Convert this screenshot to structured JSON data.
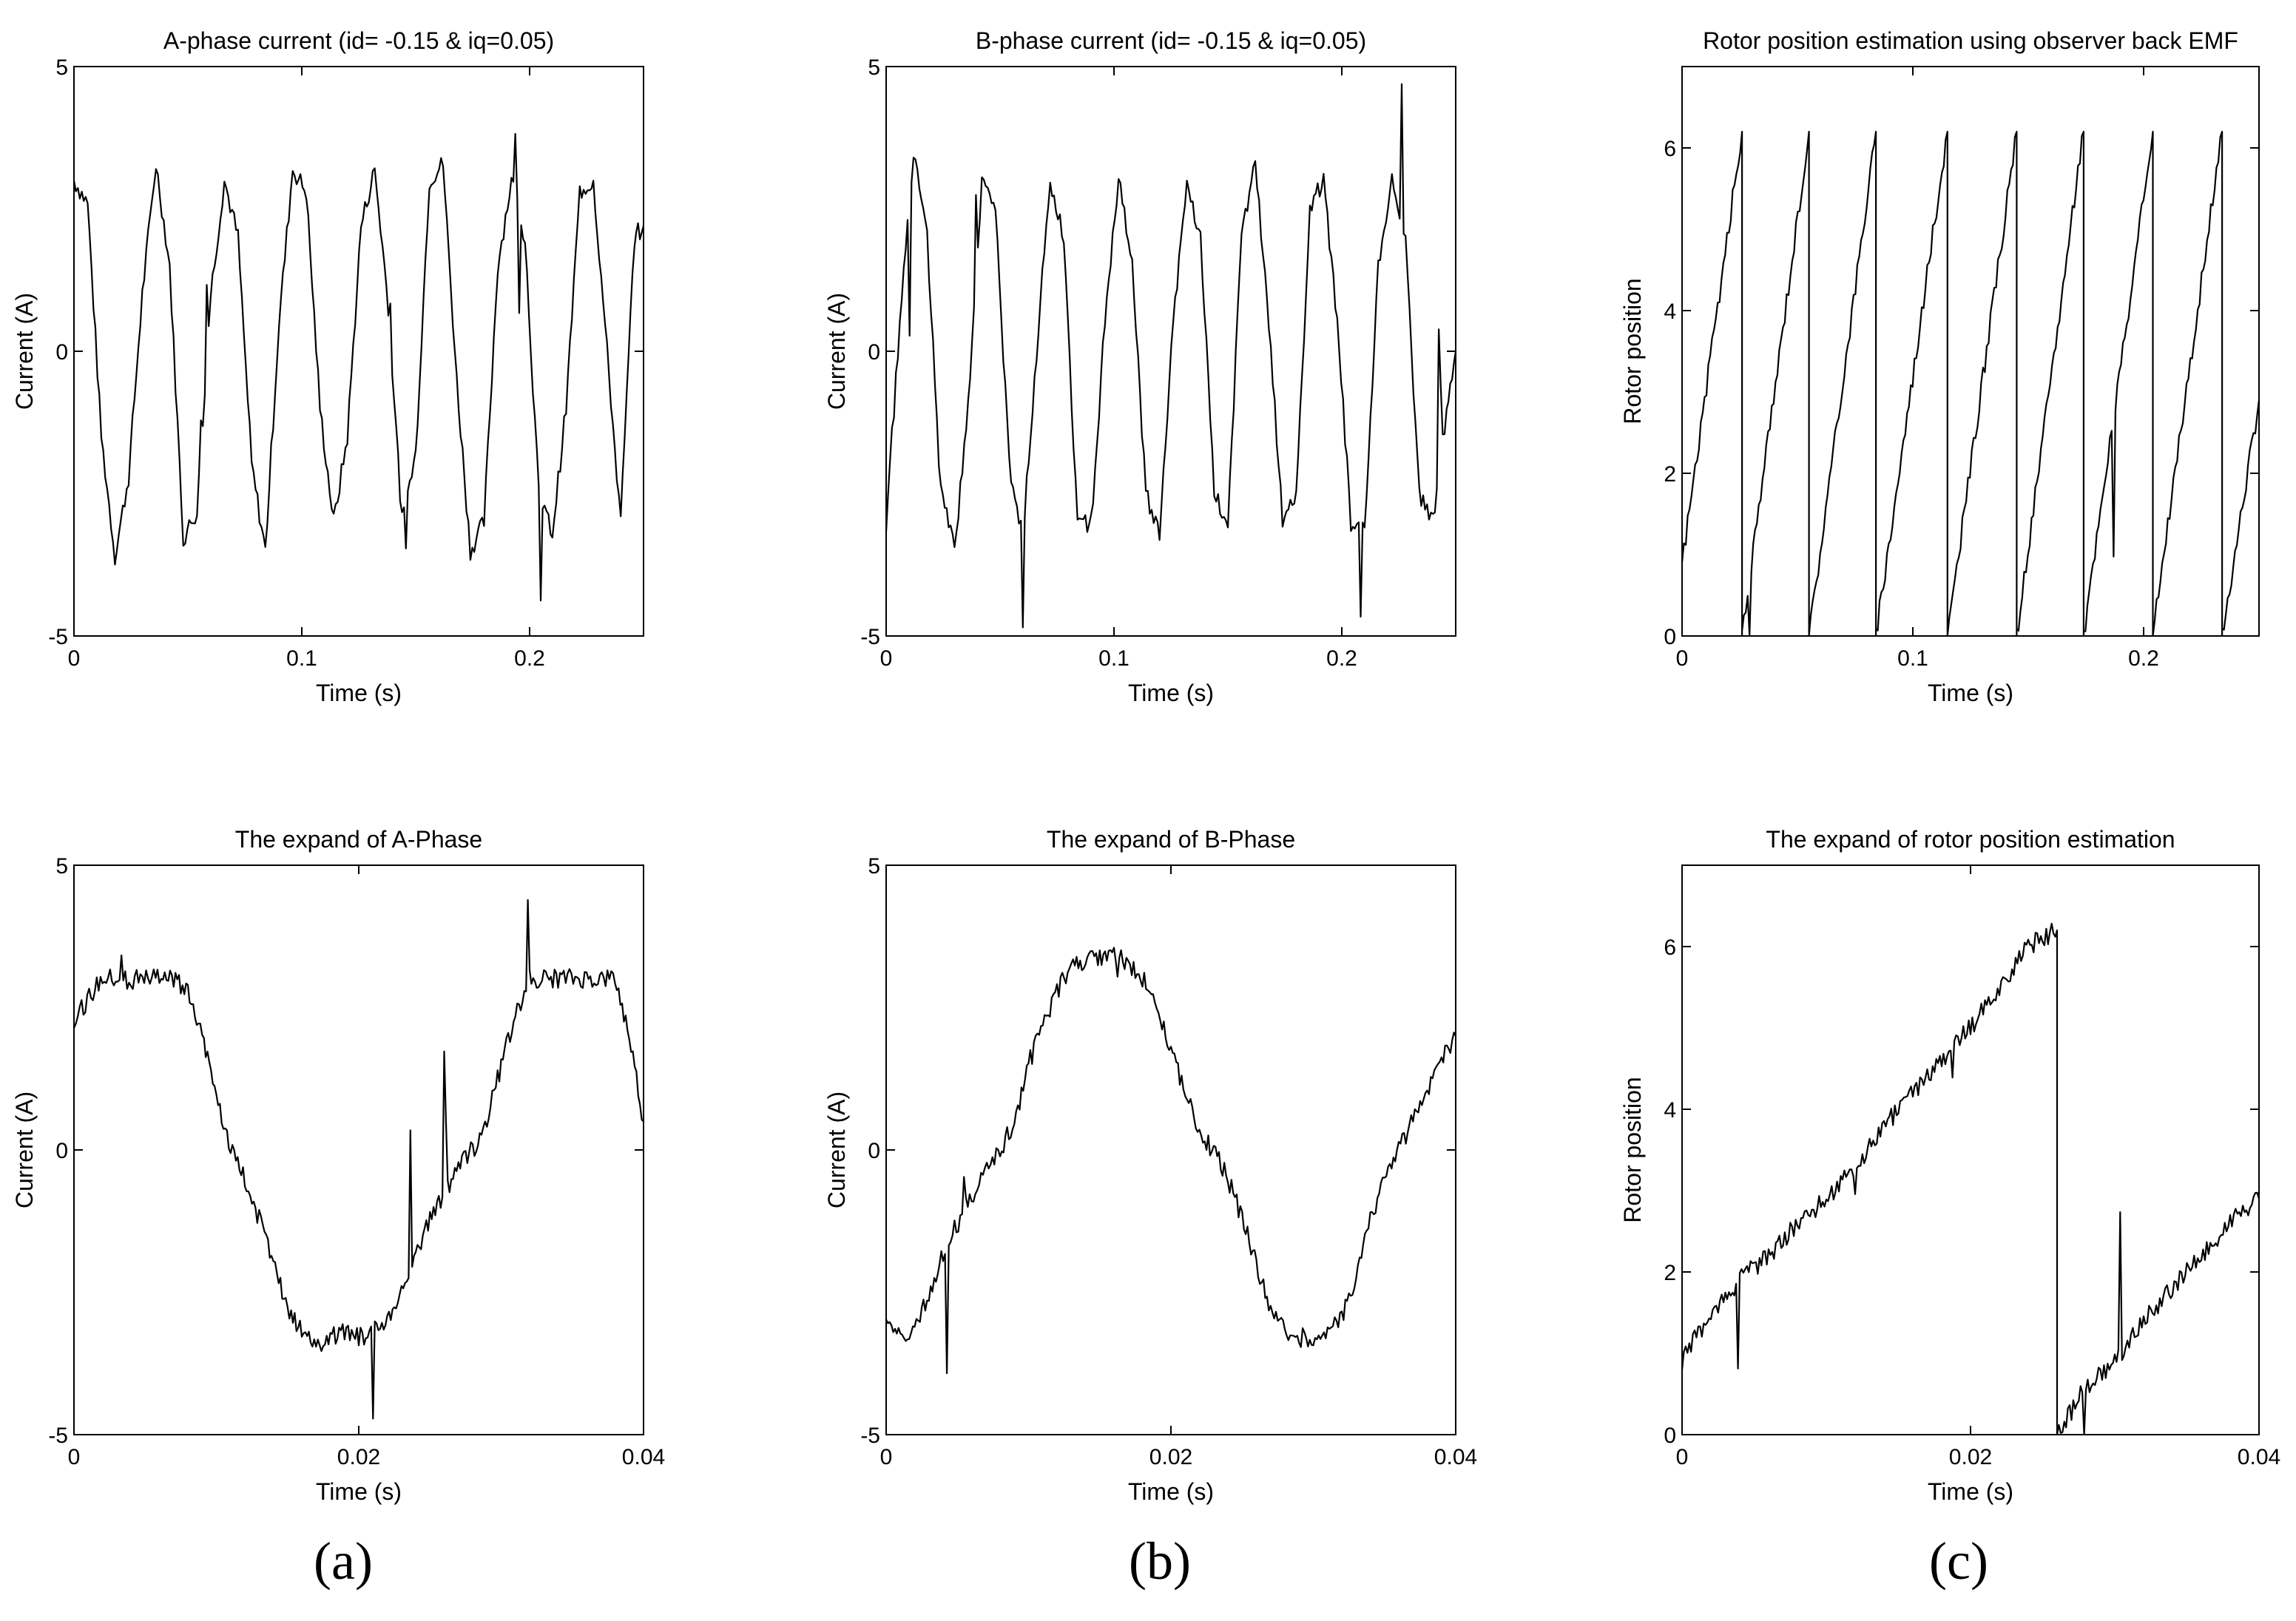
{
  "chart_data": [
    {
      "type": "line",
      "title": "A-phase current (id= -0.15 & iq=0.05)",
      "xlabel": "Time (s)",
      "ylabel": "Current (A)",
      "xlim": [
        0,
        0.25
      ],
      "ylim": [
        -5,
        5
      ],
      "xticks": [
        0,
        0.1,
        0.2
      ],
      "xtick_labels": [
        "0",
        "0.1",
        "0.2"
      ],
      "yticks": [
        -5,
        0,
        5
      ],
      "ytick_labels": [
        "-5",
        "0",
        "5"
      ],
      "series": [
        {
          "x": [
            0,
            0.006,
            0.012,
            0.018,
            0.024,
            0.03,
            0.036,
            0.042,
            0.048,
            0.054,
            0.06,
            0.066,
            0.072,
            0.078,
            0.084,
            0.09,
            0.096,
            0.102,
            0.108,
            0.114,
            0.12,
            0.126,
            0.132,
            0.138,
            0.144,
            0.15,
            0.156,
            0.162,
            0.168,
            0.174,
            0.18,
            0.186,
            0.192,
            0.198,
            0.204,
            0.21,
            0.216,
            0.222,
            0.228,
            0.234,
            0.24,
            0.246,
            0.25
          ],
          "y": [
            3.0,
            2.6,
            -1.5,
            -3.6,
            -2.2,
            1.0,
            3.3,
            1.5,
            -3.3,
            -2.8,
            1.0,
            3.0,
            2.0,
            -2.0,
            -3.5,
            0.5,
            3.2,
            2.8,
            -1.0,
            -3.0,
            -1.5,
            2.2,
            3.2,
            0.8,
            -3.0,
            -1.8,
            3.0,
            3.3,
            -0.5,
            -3.5,
            -3.0,
            1.5,
            3.0,
            2.0,
            -2.5,
            -3.2,
            -1.0,
            2.8,
            3.0,
            0.0,
            -3.0,
            2.0,
            2.2
          ]
        }
      ]
    },
    {
      "type": "line",
      "title": "B-phase current (id= -0.15 & iq=0.05)",
      "xlabel": "Time (s)",
      "ylabel": "Current (A)",
      "xlim": [
        0,
        0.25
      ],
      "ylim": [
        -5,
        5
      ],
      "xticks": [
        0,
        0.1,
        0.2
      ],
      "xtick_labels": [
        "0",
        "0.1",
        "0.2"
      ],
      "yticks": [
        -5,
        0,
        5
      ],
      "ytick_labels": [
        "-5",
        "0",
        "5"
      ],
      "series": [
        {
          "x": [
            0,
            0.006,
            0.012,
            0.018,
            0.024,
            0.03,
            0.036,
            0.042,
            0.048,
            0.054,
            0.06,
            0.066,
            0.072,
            0.078,
            0.084,
            0.09,
            0.096,
            0.102,
            0.108,
            0.114,
            0.12,
            0.126,
            0.132,
            0.138,
            0.144,
            0.15,
            0.156,
            0.162,
            0.168,
            0.174,
            0.18,
            0.186,
            0.192,
            0.198,
            0.204,
            0.21,
            0.216,
            0.222,
            0.228,
            0.234,
            0.24,
            0.246,
            0.25
          ],
          "y": [
            -3.0,
            0.5,
            3.5,
            2.0,
            -2.5,
            -3.5,
            -1.0,
            3.0,
            2.5,
            -2.0,
            -3.2,
            0.0,
            3.0,
            2.0,
            -3.0,
            -3.0,
            0.5,
            3.0,
            1.5,
            -2.5,
            -3.2,
            0.5,
            3.0,
            2.0,
            -2.5,
            -3.0,
            2.0,
            3.3,
            0.5,
            -3.0,
            -2.5,
            2.5,
            3.0,
            0.5,
            -3.0,
            -3.2,
            1.5,
            3.0,
            2.0,
            -2.5,
            -3.0,
            -1.0,
            0.0
          ]
        }
      ]
    },
    {
      "type": "line",
      "title": "Rotor position estimation using observer back EMF",
      "xlabel": "Time (s)",
      "ylabel": "Rotor position",
      "xlim": [
        0,
        0.25
      ],
      "ylim": [
        0,
        7
      ],
      "xticks": [
        0,
        0.1,
        0.2
      ],
      "xtick_labels": [
        "0",
        "0.1",
        "0.2"
      ],
      "yticks": [
        0,
        2,
        4,
        6
      ],
      "ytick_labels": [
        "0",
        "2",
        "4",
        "6"
      ],
      "series": [
        {
          "x": [
            0,
            0.026,
            0.026,
            0.055,
            0.055,
            0.084,
            0.084,
            0.115,
            0.115,
            0.145,
            0.145,
            0.174,
            0.174,
            0.204,
            0.204,
            0.234,
            0.234,
            0.25
          ],
          "y": [
            0.9,
            6.2,
            0.0,
            6.2,
            0.0,
            6.2,
            0.0,
            6.2,
            0.0,
            6.2,
            0.0,
            6.2,
            0.0,
            6.2,
            0.0,
            6.2,
            0.0,
            2.9
          ]
        }
      ]
    },
    {
      "type": "line",
      "title": "The expand of A-Phase",
      "xlabel": "Time (s)",
      "ylabel": "Current (A)",
      "xlim": [
        0,
        0.04
      ],
      "ylim": [
        -5,
        5
      ],
      "xticks": [
        0,
        0.02,
        0.04
      ],
      "xtick_labels": [
        "0",
        "0.02",
        "0.04"
      ],
      "yticks": [
        -5,
        0,
        5
      ],
      "ytick_labels": [
        "-5",
        "0",
        "5"
      ],
      "series": [
        {
          "x": [
            0,
            0.002,
            0.004,
            0.006,
            0.007,
            0.008,
            0.009,
            0.01,
            0.011,
            0.012,
            0.013,
            0.014,
            0.015,
            0.016,
            0.017,
            0.018,
            0.019,
            0.02,
            0.021,
            0.022,
            0.023,
            0.024,
            0.025,
            0.026,
            0.027,
            0.028,
            0.029,
            0.03,
            0.031,
            0.032,
            0.033,
            0.034,
            0.036,
            0.038,
            0.039,
            0.04
          ],
          "y": [
            2.3,
            3.0,
            3.0,
            3.0,
            3.0,
            2.8,
            2.0,
            1.0,
            0.0,
            -0.5,
            -1.2,
            -2.0,
            -2.8,
            -3.2,
            -3.4,
            -3.3,
            -3.2,
            -3.3,
            -3.2,
            -3.0,
            -2.5,
            -1.8,
            -1.2,
            -0.8,
            -0.2,
            0.0,
            0.5,
            1.5,
            2.4,
            3.0,
            3.0,
            3.0,
            3.0,
            3.0,
            2.0,
            0.5
          ]
        }
      ]
    },
    {
      "type": "line",
      "title": "The expand of B-Phase",
      "xlabel": "Time (s)",
      "ylabel": "Current (A)",
      "xlim": [
        0,
        0.04
      ],
      "ylim": [
        -5,
        5
      ],
      "xticks": [
        0,
        0.02,
        0.04
      ],
      "xtick_labels": [
        "0",
        "0.02",
        "0.04"
      ],
      "yticks": [
        -5,
        0,
        5
      ],
      "ytick_labels": [
        "-5",
        "0",
        "5"
      ],
      "series": [
        {
          "x": [
            0,
            0.001,
            0.002,
            0.003,
            0.004,
            0.006,
            0.008,
            0.009,
            0.01,
            0.011,
            0.012,
            0.013,
            0.014,
            0.015,
            0.016,
            0.017,
            0.018,
            0.019,
            0.02,
            0.021,
            0.022,
            0.023,
            0.024,
            0.025,
            0.026,
            0.027,
            0.028,
            0.029,
            0.03,
            0.031,
            0.032,
            0.033,
            0.034,
            0.035,
            0.036,
            0.037,
            0.038,
            0.039,
            0.04
          ],
          "y": [
            -3.0,
            -3.3,
            -3.2,
            -2.5,
            -1.8,
            -0.8,
            0.0,
            0.5,
            1.5,
            2.2,
            2.8,
            3.2,
            3.3,
            3.4,
            3.4,
            3.3,
            3.0,
            2.5,
            1.8,
            1.0,
            0.3,
            0.0,
            -0.5,
            -1.2,
            -2.0,
            -2.8,
            -3.2,
            -3.3,
            -3.3,
            -3.2,
            -3.0,
            -2.2,
            -1.2,
            -0.5,
            0.0,
            0.5,
            1.0,
            1.6,
            2.0
          ]
        }
      ]
    },
    {
      "type": "line",
      "title": "The expand of rotor position estimation",
      "xlabel": "Time (s)",
      "ylabel": "Rotor position",
      "xlim": [
        0,
        0.04
      ],
      "ylim": [
        0,
        7
      ],
      "xticks": [
        0,
        0.02,
        0.04
      ],
      "xtick_labels": [
        "0",
        "0.02",
        "0.04"
      ],
      "yticks": [
        0,
        2,
        4,
        6
      ],
      "ytick_labels": [
        "0",
        "2",
        "4",
        "6"
      ],
      "series": [
        {
          "x": [
            0,
            0.002,
            0.004,
            0.006,
            0.008,
            0.01,
            0.012,
            0.014,
            0.016,
            0.018,
            0.02,
            0.022,
            0.024,
            0.026,
            0.026,
            0.028,
            0.03,
            0.032,
            0.034,
            0.036,
            0.038,
            0.04
          ],
          "y": [
            0.9,
            1.5,
            1.9,
            2.2,
            2.6,
            2.9,
            3.3,
            3.8,
            4.2,
            4.6,
            5.0,
            5.5,
            6.0,
            6.2,
            0.0,
            0.6,
            0.9,
            1.4,
            1.8,
            2.2,
            2.6,
            2.9
          ]
        }
      ]
    }
  ],
  "panel_labels": [
    "(a)",
    "(b)",
    "(c)"
  ]
}
